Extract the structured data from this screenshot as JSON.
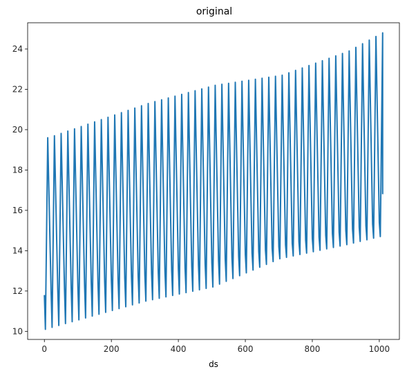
{
  "chart_data": {
    "type": "line",
    "title": "original",
    "xlabel": "ds",
    "ylabel": "",
    "xlim": [
      -50,
      1060
    ],
    "ylim": [
      9.6,
      25.3
    ],
    "xticks": [
      0,
      200,
      400,
      600,
      800,
      1000
    ],
    "yticks": [
      10,
      12,
      14,
      16,
      18,
      20,
      22,
      24
    ],
    "grid": false,
    "color": "#1f77b4",
    "cycle_samples": [
      {
        "x_start": 0,
        "y_start": 11.8,
        "trough": 10.1,
        "peak": 19.6
      },
      {
        "x_start": 20,
        "y_start": 12.0,
        "trough": 10.2,
        "peak": 19.7
      },
      {
        "x_start": 300,
        "y_start": 12.8,
        "trough": 11.5,
        "peak": 21.3
      },
      {
        "x_start": 500,
        "y_start": 13.4,
        "trough": 12.2,
        "peak": 22.2
      },
      {
        "x_start": 700,
        "y_start": 14.2,
        "trough": 13.6,
        "peak": 22.7
      },
      {
        "x_start": 900,
        "y_start": 15.0,
        "trough": 14.3,
        "peak": 23.9
      },
      {
        "x_start": 1000,
        "y_start": 15.4,
        "trough": 14.7,
        "peak": 24.8
      }
    ],
    "last_point": {
      "x": 1010,
      "y": 16.8
    }
  }
}
